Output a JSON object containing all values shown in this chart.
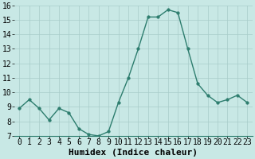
{
  "x": [
    0,
    1,
    2,
    3,
    4,
    5,
    6,
    7,
    8,
    9,
    10,
    11,
    12,
    13,
    14,
    15,
    16,
    17,
    18,
    19,
    20,
    21,
    22,
    23
  ],
  "y": [
    8.9,
    9.5,
    8.9,
    8.1,
    8.9,
    8.6,
    7.5,
    7.1,
    7.0,
    7.3,
    9.3,
    11.0,
    13.0,
    15.2,
    15.2,
    15.7,
    15.5,
    13.0,
    10.6,
    9.8,
    9.3,
    9.5,
    9.8,
    9.3
  ],
  "line_color": "#2d7d6e",
  "marker": "o",
  "markersize": 2.5,
  "linewidth": 1.0,
  "xlabel": "Humidex (Indice chaleur)",
  "xlim": [
    -0.5,
    23.5
  ],
  "ylim": [
    7,
    16
  ],
  "yticks": [
    7,
    8,
    9,
    10,
    11,
    12,
    13,
    14,
    15,
    16
  ],
  "xticks": [
    0,
    1,
    2,
    3,
    4,
    5,
    6,
    7,
    8,
    9,
    10,
    11,
    12,
    13,
    14,
    15,
    16,
    17,
    18,
    19,
    20,
    21,
    22,
    23
  ],
  "background_color": "#c8e8e5",
  "grid_color": "#a8ccc9",
  "tick_fontsize": 7,
  "xlabel_fontsize": 8
}
